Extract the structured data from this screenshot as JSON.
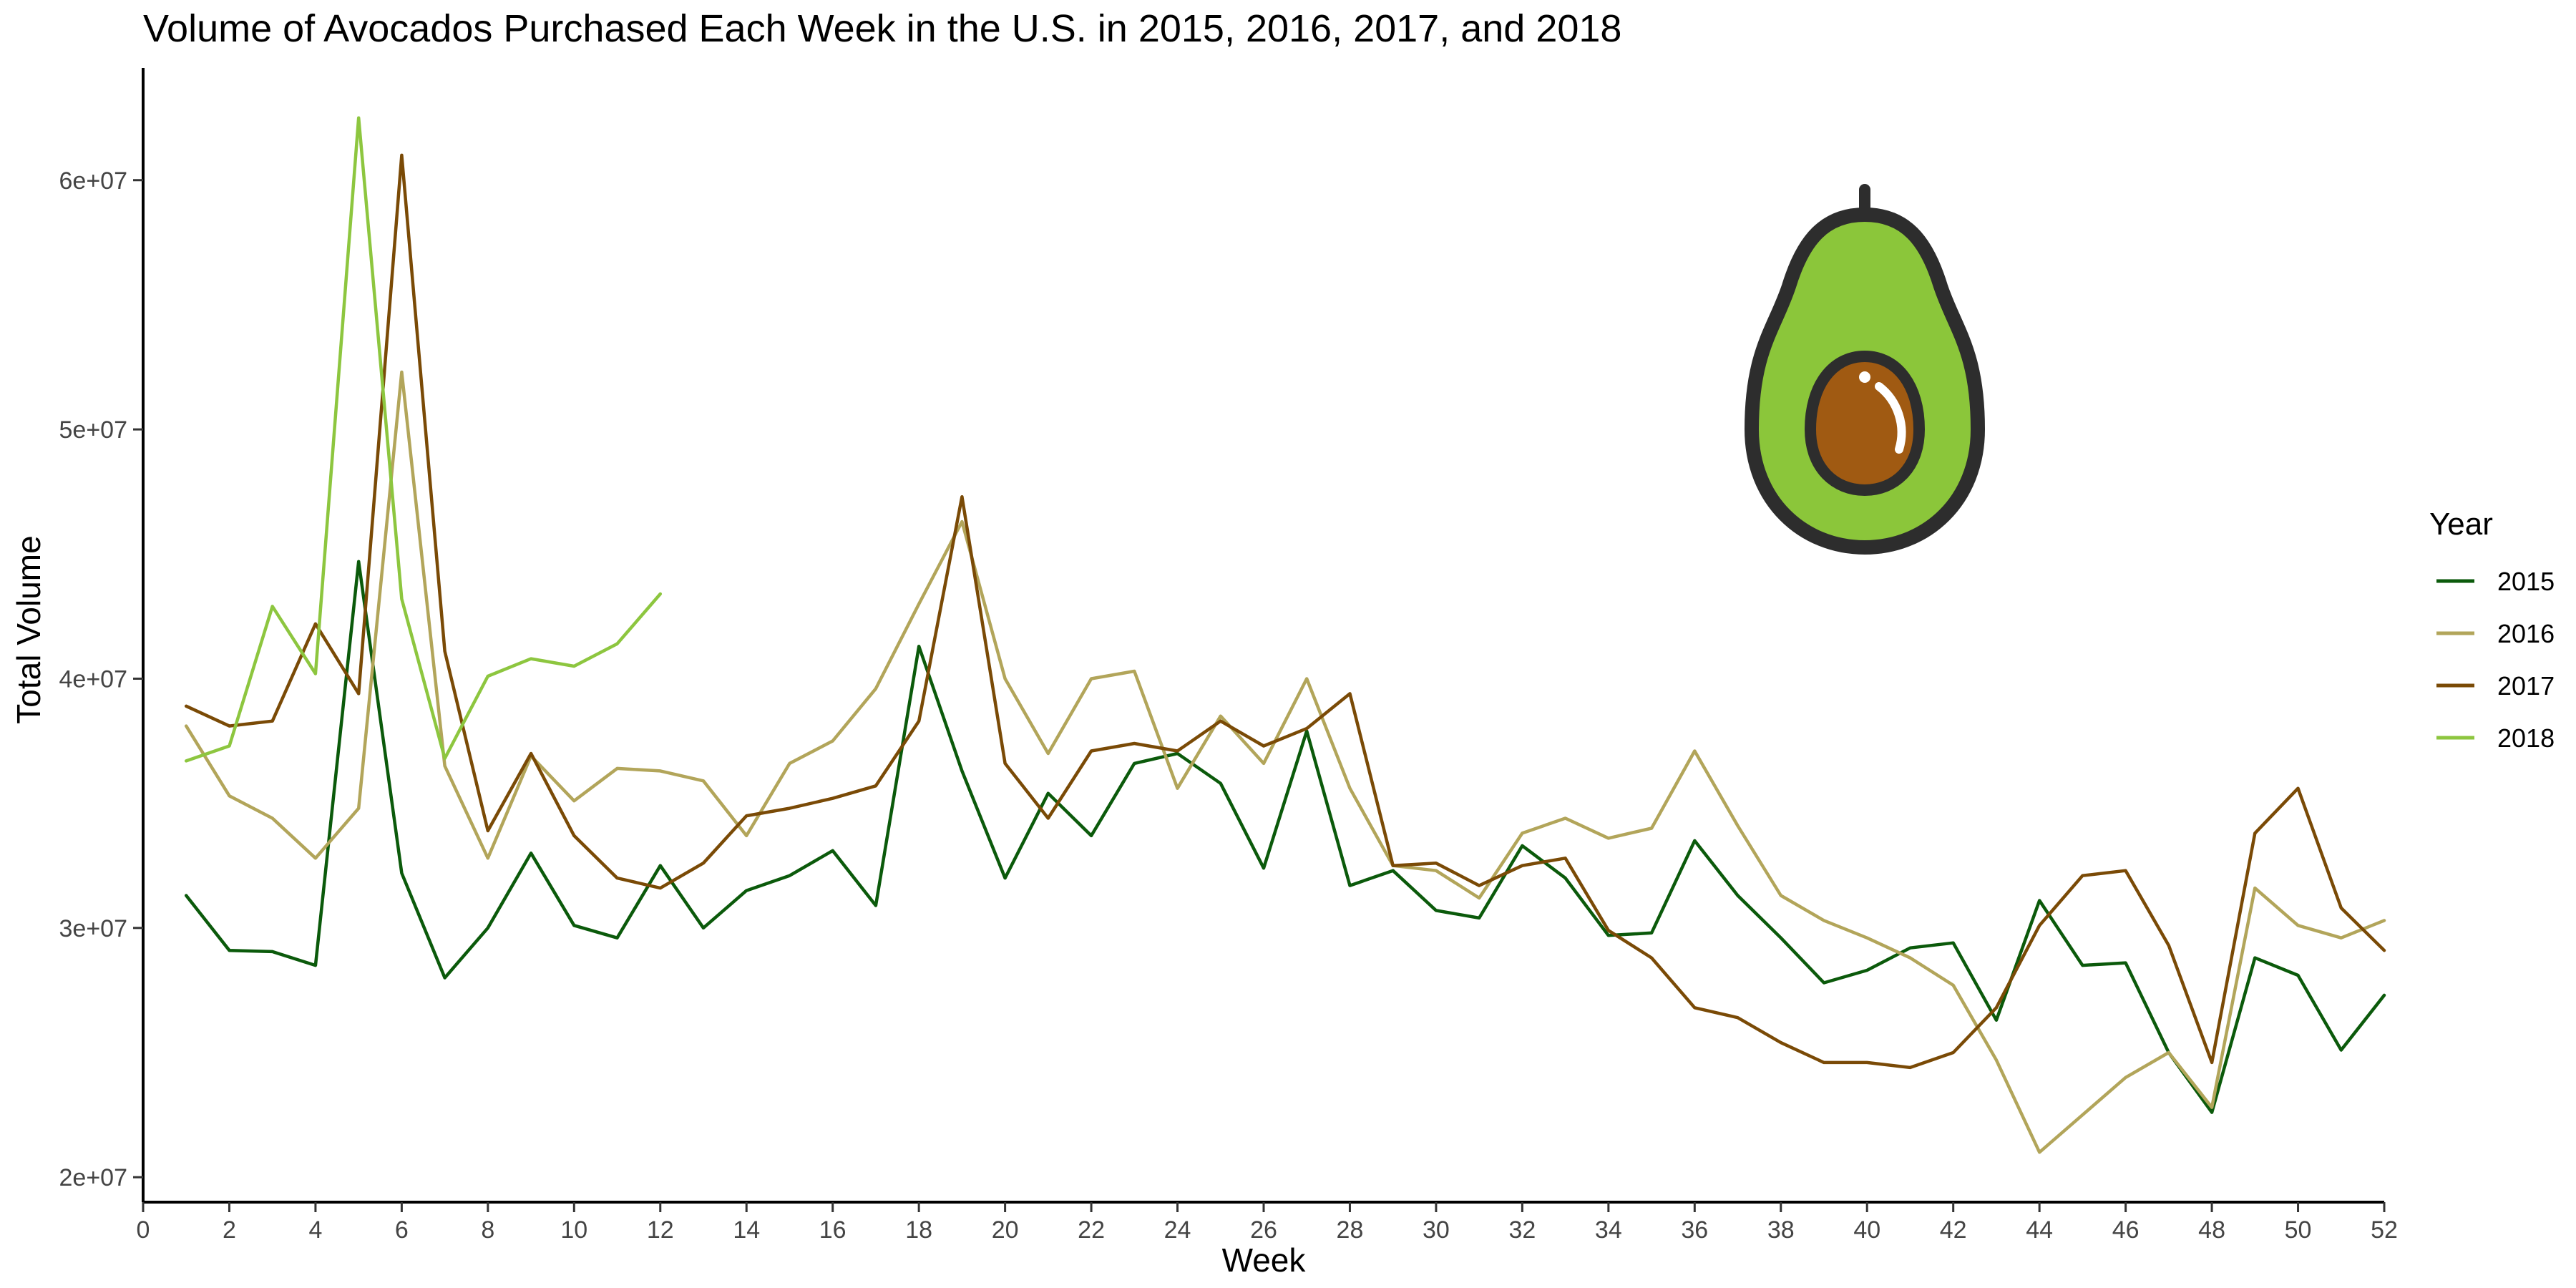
{
  "chart_data": {
    "type": "line",
    "title": "Volume of Avocados Purchased Each Week in the U.S. in 2015, 2016, 2017, and 2018",
    "xlabel": "Week",
    "ylabel": "Total Volume",
    "xlim": [
      0,
      52
    ],
    "ylim": [
      19000000,
      64500000
    ],
    "x_ticks": [
      0,
      2,
      4,
      6,
      8,
      10,
      12,
      14,
      16,
      18,
      20,
      22,
      24,
      26,
      28,
      30,
      32,
      34,
      36,
      38,
      40,
      42,
      44,
      46,
      48,
      50,
      52
    ],
    "x_tick_labels": [
      "0",
      "2",
      "4",
      "6",
      "8",
      "10",
      "12",
      "14",
      "16",
      "18",
      "20",
      "22",
      "24",
      "26",
      "28",
      "30",
      "32",
      "34",
      "36",
      "38",
      "40",
      "42",
      "44",
      "46",
      "48",
      "50",
      "52"
    ],
    "y_ticks": [
      20000000,
      30000000,
      40000000,
      50000000,
      60000000
    ],
    "y_tick_labels": [
      "2e+07",
      "3e+07",
      "4e+07",
      "5e+07",
      "6e+07"
    ],
    "grid": false,
    "legend": {
      "title": "Year",
      "position": "right"
    },
    "series": [
      {
        "name": "2015",
        "color": "#0b5a0b",
        "x": [
          1,
          2,
          3,
          4,
          5,
          6,
          7,
          8,
          9,
          10,
          11,
          12,
          13,
          14,
          15,
          16,
          17,
          18,
          19,
          20,
          21,
          22,
          23,
          24,
          25,
          26,
          27,
          28,
          29,
          30,
          31,
          32,
          33,
          34,
          35,
          36,
          37,
          38,
          39,
          40,
          41,
          42,
          43,
          44,
          45,
          46,
          47,
          48,
          49,
          50,
          51,
          52
        ],
        "y": [
          31300000,
          29100000,
          29050000,
          28500000,
          44700000,
          32200000,
          28000000,
          30000000,
          33000000,
          30100000,
          29600000,
          32500000,
          30000000,
          31500000,
          32100000,
          33100000,
          30900000,
          41300000,
          36300000,
          32000000,
          35400000,
          33700000,
          36600000,
          37000000,
          35800000,
          32400000,
          37900000,
          31700000,
          32300000,
          30700000,
          30400000,
          33300000,
          32000000,
          29700000,
          29800000,
          33500000,
          31300000,
          29600000,
          27800000,
          28300000,
          29200000,
          29400000,
          26300000,
          31100000,
          28500000,
          28600000,
          25000000,
          22600000,
          28800000,
          28100000,
          25100000,
          27300000
        ]
      },
      {
        "name": "2016",
        "color": "#b2a55a",
        "x": [
          1,
          2,
          3,
          4,
          5,
          6,
          7,
          8,
          9,
          10,
          11,
          12,
          13,
          14,
          15,
          16,
          17,
          18,
          19,
          20,
          21,
          22,
          23,
          24,
          25,
          26,
          27,
          28,
          29,
          30,
          31,
          32,
          33,
          34,
          35,
          36,
          37,
          38,
          39,
          40,
          41,
          42,
          43,
          44,
          45,
          46,
          47,
          48,
          49,
          50,
          51,
          52
        ],
        "y": [
          38100000,
          35300000,
          34400000,
          32800000,
          34800000,
          52300000,
          36500000,
          32800000,
          36900000,
          35100000,
          36400000,
          36300000,
          35900000,
          33700000,
          36600000,
          37500000,
          39600000,
          43000000,
          46300000,
          40000000,
          37000000,
          40000000,
          40300000,
          35600000,
          38500000,
          36600000,
          40000000,
          35600000,
          32500000,
          32300000,
          31200000,
          33800000,
          34400000,
          33600000,
          34000000,
          37100000,
          34100000,
          31300000,
          30300000,
          29600000,
          28800000,
          27700000,
          24700000,
          21000000,
          22500000,
          24000000,
          25000000,
          22800000,
          31600000,
          30100000,
          29600000,
          30300000
        ]
      },
      {
        "name": "2017",
        "color": "#7a4a06",
        "x": [
          1,
          2,
          3,
          4,
          5,
          6,
          7,
          8,
          9,
          10,
          11,
          12,
          13,
          14,
          15,
          16,
          17,
          18,
          19,
          20,
          21,
          22,
          23,
          24,
          25,
          26,
          27,
          28,
          29,
          30,
          31,
          32,
          33,
          34,
          35,
          36,
          37,
          38,
          39,
          40,
          41,
          42,
          43,
          44,
          45,
          46,
          47,
          48,
          49,
          50,
          51,
          52
        ],
        "y": [
          38900000,
          38100000,
          38300000,
          42200000,
          39400000,
          61000000,
          41100000,
          33900000,
          37000000,
          33700000,
          32000000,
          31600000,
          32600000,
          34500000,
          34800000,
          35200000,
          35700000,
          38300000,
          47300000,
          36600000,
          34400000,
          37100000,
          37400000,
          37100000,
          38300000,
          37300000,
          38000000,
          39400000,
          32500000,
          32600000,
          31700000,
          32500000,
          32800000,
          29900000,
          28800000,
          26800000,
          26400000,
          25400000,
          24600000,
          24600000,
          24400000,
          25000000,
          26800000,
          30100000,
          32100000,
          32300000,
          29300000,
          24600000,
          33800000,
          35600000,
          30800000,
          29100000
        ]
      },
      {
        "name": "2018",
        "color": "#8dc63f",
        "x": [
          1,
          2,
          3,
          4,
          5,
          6,
          7,
          8,
          9,
          10,
          11,
          12
        ],
        "y": [
          36700000,
          37300000,
          42900000,
          40200000,
          62500000,
          43200000,
          36800000,
          40100000,
          40800000,
          40500000,
          41400000,
          43400000
        ]
      }
    ]
  }
}
